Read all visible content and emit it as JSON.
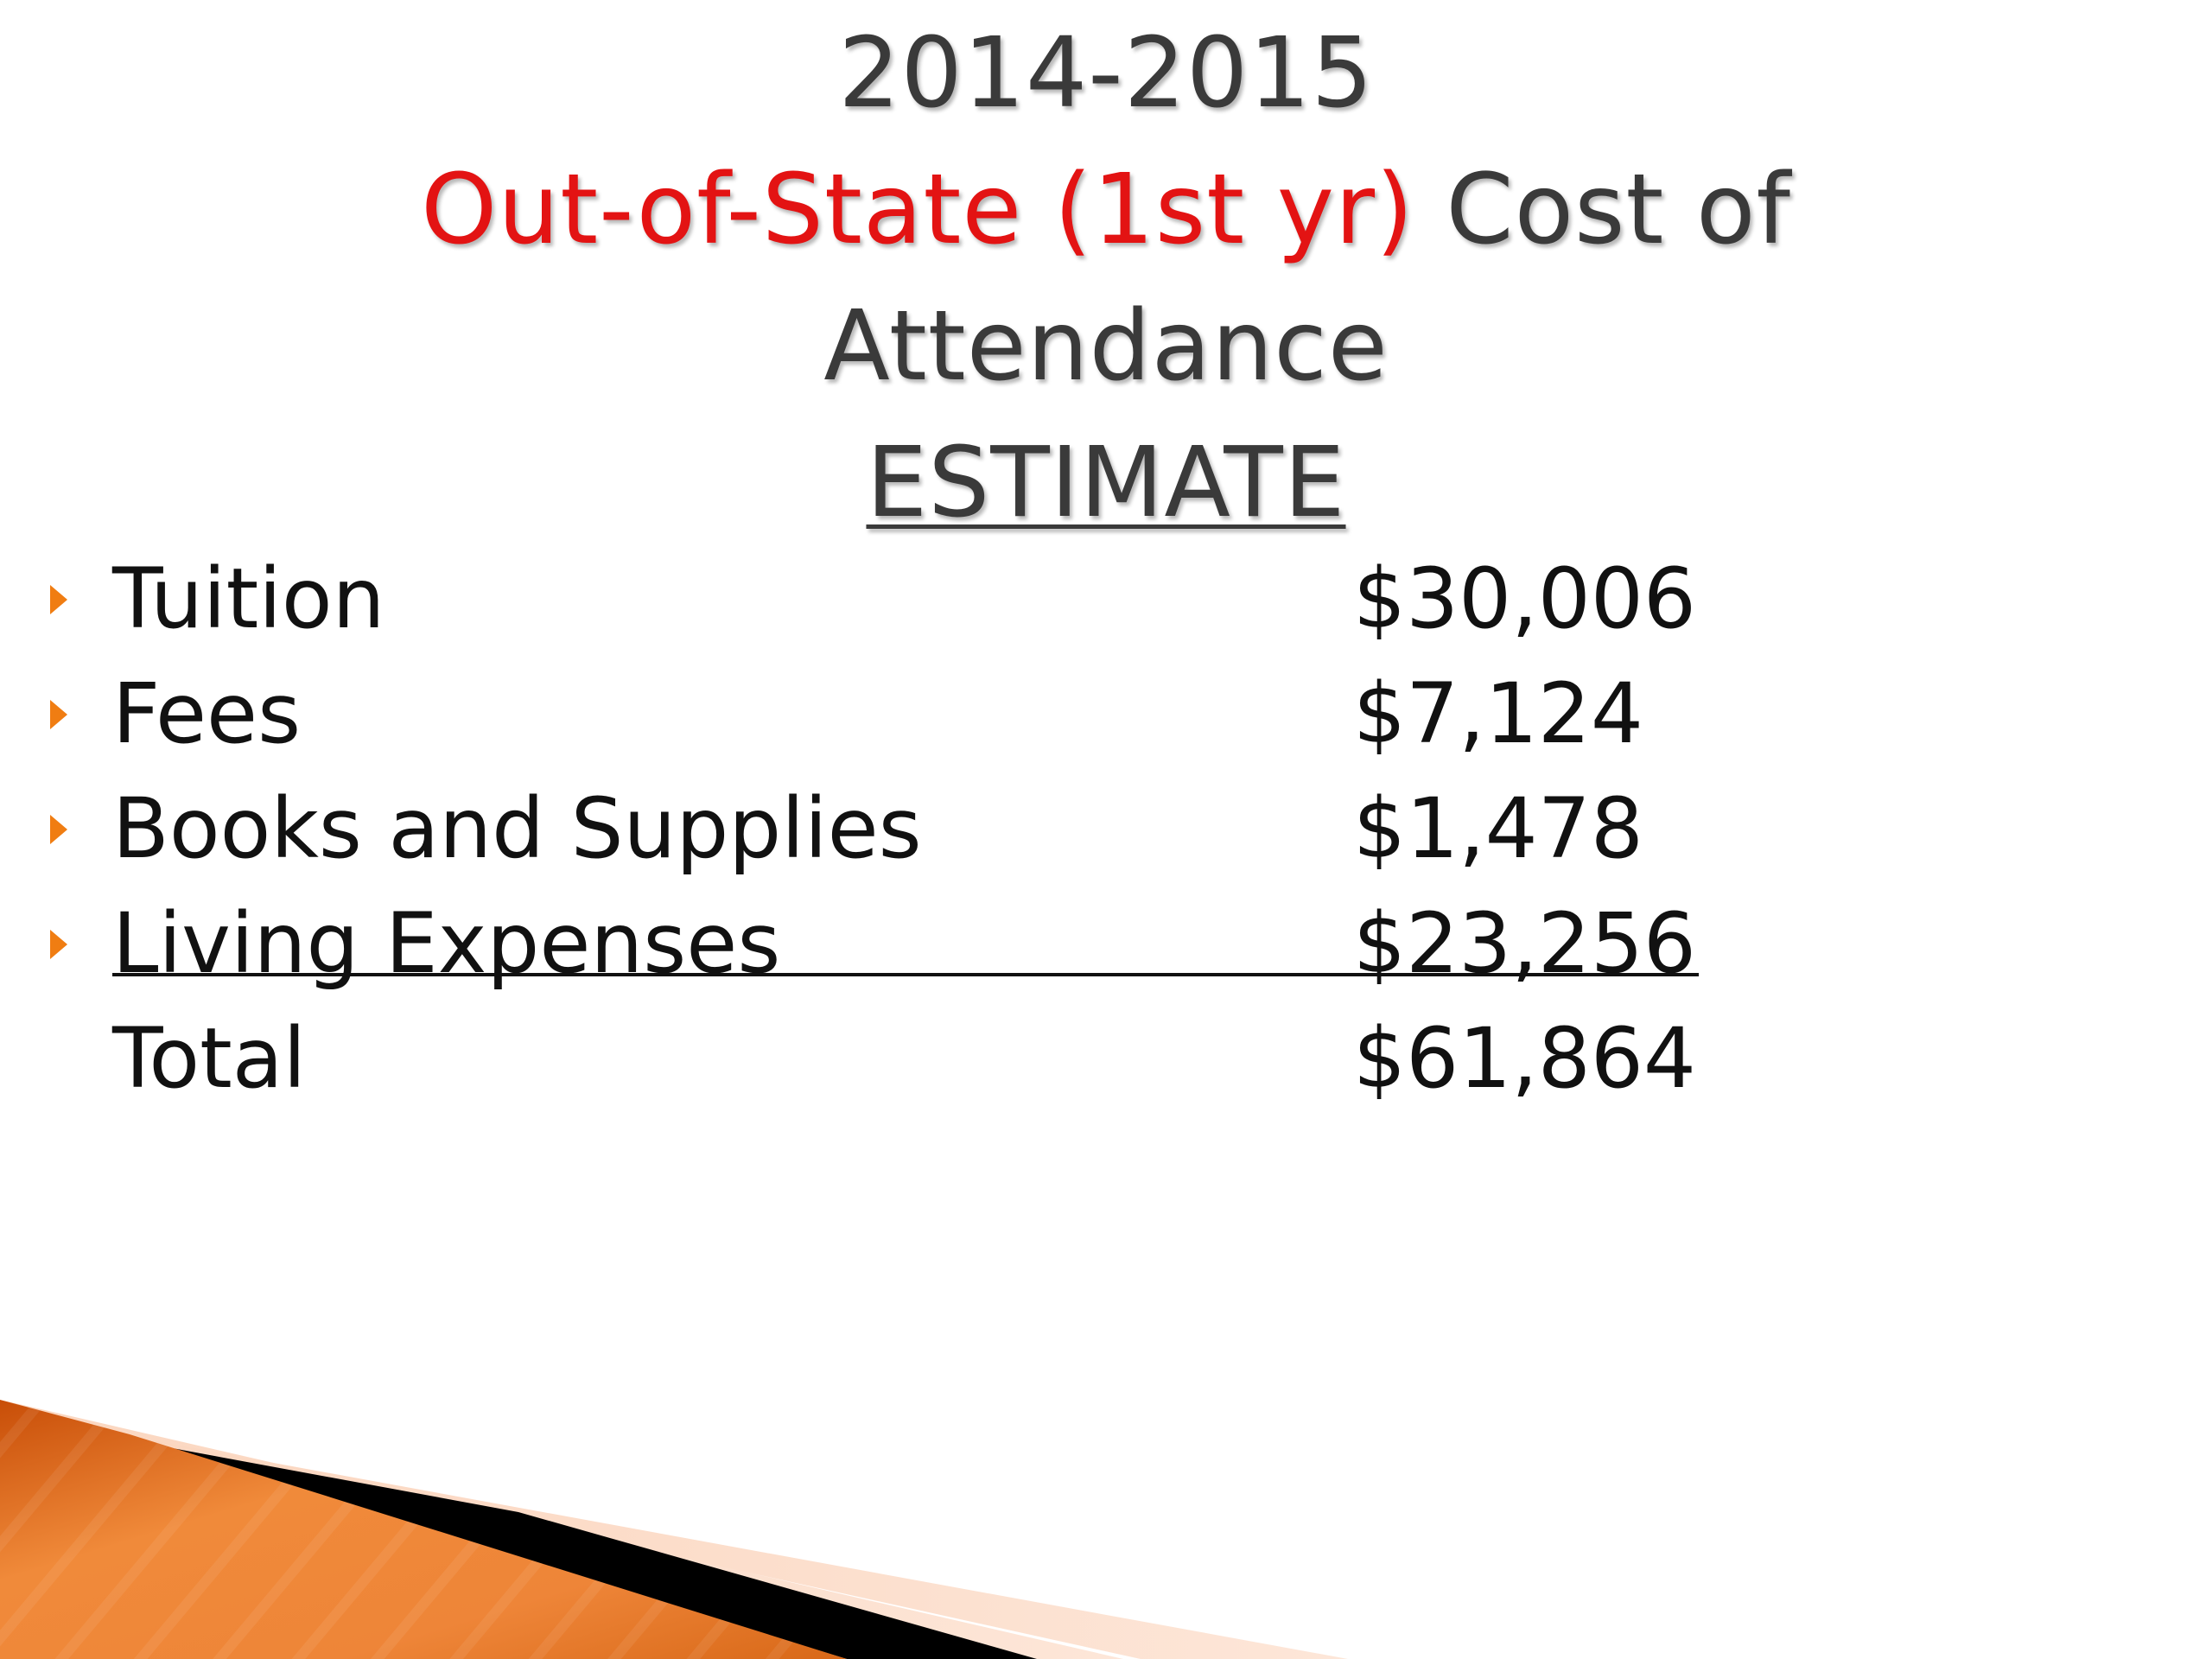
{
  "slide": {
    "title": {
      "line1": "2014-2015",
      "line2_highlight": "Out-of-State (1st yr)",
      "line2_rest": " Cost of",
      "line3": "Attendance",
      "line4": "ESTIMATE"
    },
    "items": [
      {
        "label": "Tuition",
        "amount": "$30,006"
      },
      {
        "label": "Fees",
        "amount": "$7,124"
      },
      {
        "label": "Books and Supplies",
        "amount": "$1,478"
      },
      {
        "label": "Living Expenses",
        "amount": "$23,256"
      }
    ],
    "total": {
      "label": "Total",
      "amount": "$61,864"
    }
  },
  "colors": {
    "title_text": "#3a3a3a",
    "highlight_red": "#e31313",
    "bullet_orange": "#f07d12",
    "body_text": "#111111"
  }
}
